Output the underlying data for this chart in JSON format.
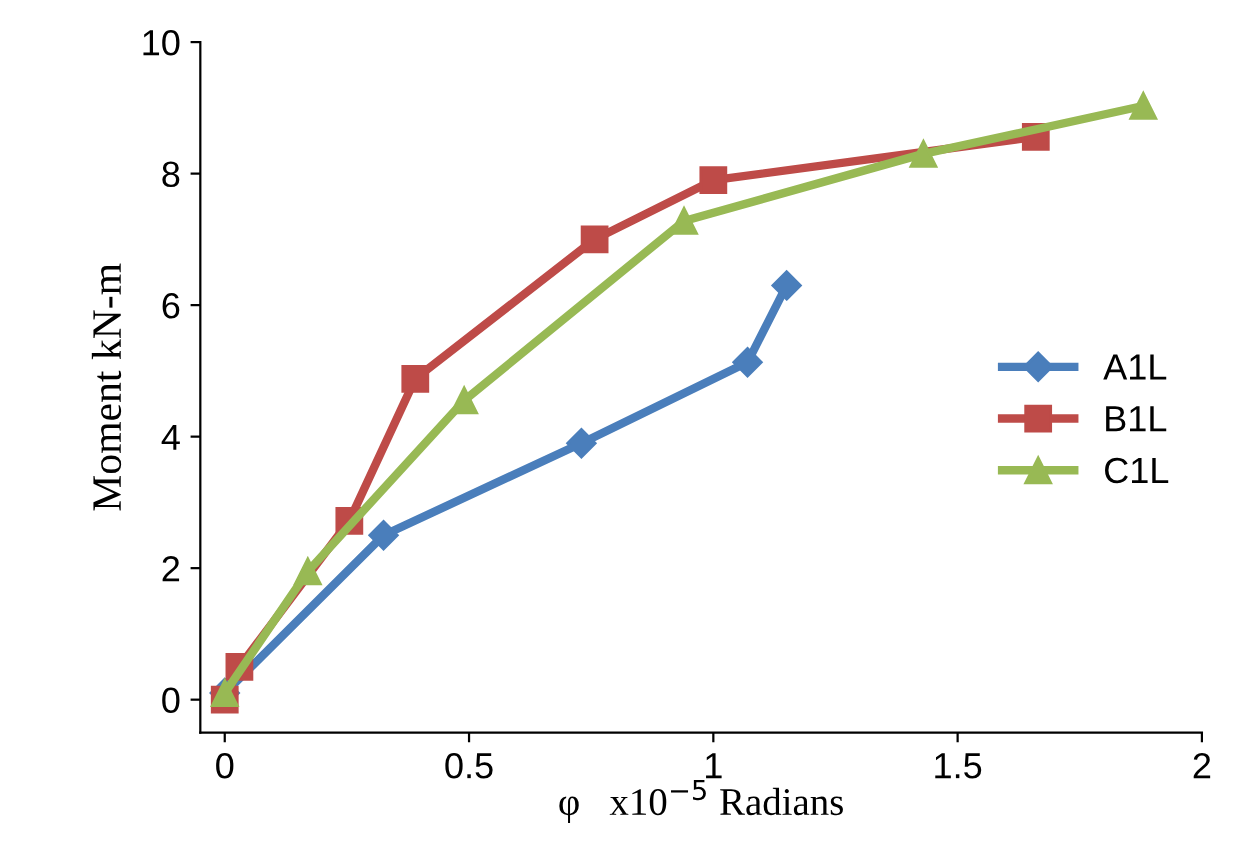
{
  "chart_data": {
    "type": "line",
    "xlabel": "φ   x10$^{−5}$ Radians",
    "ylabel": "Moment kN-m",
    "xlim": [
      -0.05,
      2
    ],
    "ylim": [
      -0.5,
      10
    ],
    "xticks": [
      0,
      0.5,
      1,
      1.5,
      2
    ],
    "yticks": [
      0,
      2,
      4,
      6,
      8,
      10
    ],
    "grid": false,
    "legend": "right",
    "series": [
      {
        "name": "A1L",
        "color": "#4a7ebb",
        "marker": "diamond",
        "x": [
          0,
          0.325,
          0.73,
          1.07,
          1.15
        ],
        "values": [
          0.1,
          2.5,
          3.9,
          5.13,
          6.3
        ]
      },
      {
        "name": "B1L",
        "color": "#be4b48",
        "marker": "square",
        "x": [
          0,
          0.03,
          0.255,
          0.39,
          0.757,
          1.0,
          1.66
        ],
        "values": [
          0,
          0.5,
          2.72,
          4.88,
          7.0,
          7.9,
          8.56
        ]
      },
      {
        "name": "C1L",
        "color": "#98b954",
        "marker": "triangle",
        "x": [
          0,
          0.17,
          0.49,
          0.94,
          1.43,
          1.88
        ],
        "values": [
          0.1,
          1.95,
          4.55,
          7.28,
          8.3,
          9.03
        ]
      }
    ]
  }
}
